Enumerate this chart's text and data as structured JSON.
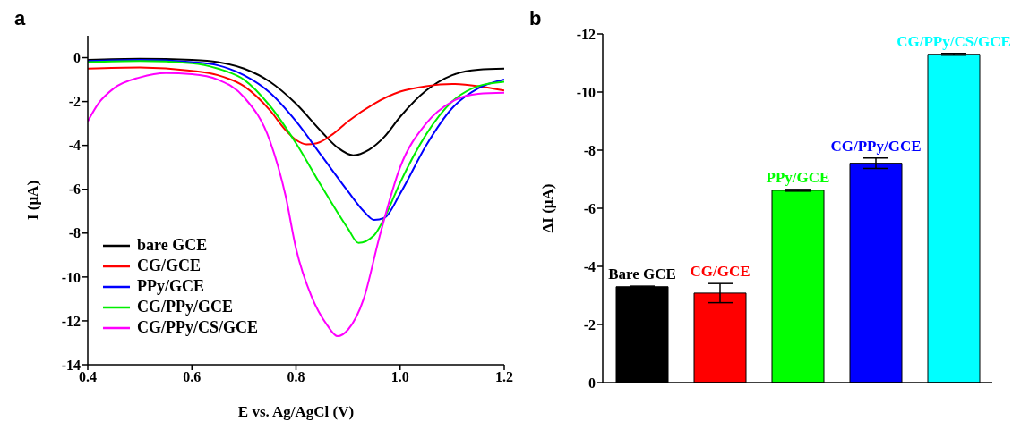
{
  "chart_data": [
    {
      "type": "line",
      "title": "a",
      "xlabel": "E vs. Ag/AgCl (V)",
      "ylabel": "I (μA)",
      "xlim": [
        0.4,
        1.2
      ],
      "xticks": [
        {
          "value": 0.4,
          "label": "0.4"
        },
        {
          "value": 0.6,
          "label": "0.6"
        },
        {
          "value": 0.8,
          "label": "0.8"
        },
        {
          "value": 1.0,
          "label": "1.0"
        },
        {
          "value": 1.2,
          "label": "1.2"
        }
      ],
      "ylim": [
        -14,
        1
      ],
      "yticks": [
        0,
        -2,
        -4,
        -6,
        -8,
        -10,
        -12,
        -14
      ],
      "grid": false,
      "legend": "bottom left",
      "marker": "none",
      "line_style": "solid",
      "series": [
        {
          "name": "bare GCE",
          "color": "#000000",
          "x": [
            0.4,
            0.5,
            0.6,
            0.65,
            0.7,
            0.75,
            0.8,
            0.85,
            0.88,
            0.91,
            0.94,
            0.97,
            1.0,
            1.05,
            1.1,
            1.15,
            1.2
          ],
          "values": [
            -0.1,
            -0.05,
            -0.1,
            -0.2,
            -0.5,
            -1.1,
            -2.1,
            -3.4,
            -4.1,
            -4.45,
            -4.2,
            -3.6,
            -2.7,
            -1.5,
            -0.8,
            -0.55,
            -0.5
          ]
        },
        {
          "name": "CG/GCE",
          "color": "#ff0000",
          "x": [
            0.4,
            0.5,
            0.6,
            0.65,
            0.7,
            0.75,
            0.78,
            0.8,
            0.82,
            0.84,
            0.87,
            0.9,
            0.95,
            1.0,
            1.05,
            1.1,
            1.15,
            1.2
          ],
          "values": [
            -0.5,
            -0.45,
            -0.6,
            -0.8,
            -1.3,
            -2.4,
            -3.3,
            -3.75,
            -3.95,
            -3.9,
            -3.5,
            -2.9,
            -2.1,
            -1.55,
            -1.3,
            -1.2,
            -1.3,
            -1.5
          ]
        },
        {
          "name": "PPy/GCE",
          "color": "#0000ff",
          "x": [
            0.4,
            0.5,
            0.6,
            0.65,
            0.7,
            0.75,
            0.8,
            0.85,
            0.9,
            0.93,
            0.95,
            0.97,
            1.0,
            1.05,
            1.1,
            1.15,
            1.2
          ],
          "values": [
            -0.15,
            -0.1,
            -0.2,
            -0.35,
            -0.8,
            -1.6,
            -2.9,
            -4.5,
            -6.1,
            -7.0,
            -7.4,
            -7.3,
            -6.2,
            -4.0,
            -2.3,
            -1.4,
            -1.0
          ]
        },
        {
          "name": "CG/PPy/GCE",
          "color": "#00ee00",
          "x": [
            0.4,
            0.5,
            0.6,
            0.65,
            0.7,
            0.75,
            0.8,
            0.85,
            0.9,
            0.92,
            0.95,
            0.97,
            1.0,
            1.05,
            1.1,
            1.15,
            1.2
          ],
          "values": [
            -0.2,
            -0.15,
            -0.25,
            -0.5,
            -1.0,
            -2.2,
            -3.9,
            -5.9,
            -7.8,
            -8.45,
            -8.1,
            -7.3,
            -5.7,
            -3.5,
            -2.0,
            -1.3,
            -1.1
          ]
        },
        {
          "name": "CG/PPy/CS/GCE",
          "color": "#ff00ff",
          "x": [
            0.4,
            0.42,
            0.45,
            0.5,
            0.55,
            0.6,
            0.65,
            0.7,
            0.75,
            0.78,
            0.8,
            0.83,
            0.86,
            0.88,
            0.9,
            0.93,
            0.96,
            1.0,
            1.05,
            1.1,
            1.15,
            1.2
          ],
          "values": [
            -2.9,
            -2.1,
            -1.4,
            -0.9,
            -0.7,
            -0.75,
            -1.0,
            -1.8,
            -3.8,
            -6.3,
            -8.7,
            -10.9,
            -12.2,
            -12.7,
            -12.4,
            -11.0,
            -8.2,
            -5.0,
            -3.0,
            -2.0,
            -1.65,
            -1.6
          ]
        }
      ]
    },
    {
      "type": "bar",
      "title": "b",
      "ylabel": "ΔI (μA)",
      "categories": [
        "Bare GCE",
        "CG/GCE",
        "PPy/GCE",
        "CG/PPy/GCE",
        "CG/PPy/CS/GCE"
      ],
      "values": [
        -3.3,
        -3.08,
        -6.62,
        -7.55,
        -11.3
      ],
      "errors": [
        0.02,
        0.33,
        0.03,
        0.18,
        0.03
      ],
      "colors": [
        "#000000",
        "#ff0000",
        "#00ff00",
        "#0000ff",
        "#00ffff"
      ],
      "ylim": [
        0,
        -12
      ],
      "yticks": [
        0,
        -2,
        -4,
        -6,
        -8,
        -10,
        -12
      ],
      "tick_labels": "y",
      "grid": false
    }
  ]
}
